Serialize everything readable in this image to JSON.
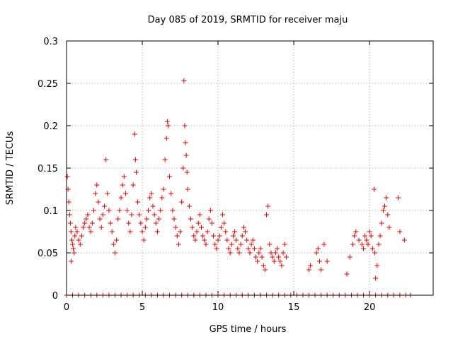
{
  "chart_data": {
    "type": "scatter",
    "title": "Day 085 of 2019, SRMTID for receiver maju",
    "xlabel": "GPS time / hours",
    "ylabel": "SRMTID / TECUs",
    "xlim": [
      0,
      24.2
    ],
    "ylim": [
      0,
      0.3
    ],
    "xticks": [
      0,
      5,
      10,
      15,
      20
    ],
    "xtick_labels": [
      "0",
      "5",
      "10",
      "15",
      "20"
    ],
    "yticks": [
      0,
      0.05,
      0.1,
      0.15,
      0.2,
      0.25,
      0.3
    ],
    "ytick_labels": [
      "0",
      "0.05",
      "0.1",
      "0.15",
      "0.2",
      "0.25",
      "0.3"
    ],
    "grid": true,
    "marker": "+",
    "color": "#e00000",
    "series": [
      {
        "name": "SRMTID",
        "points": [
          [
            0.05,
            0.14
          ],
          [
            0.1,
            0.125
          ],
          [
            0.15,
            0.11
          ],
          [
            0.2,
            0.095
          ],
          [
            0.25,
            0.085
          ],
          [
            0.3,
            0.075
          ],
          [
            0.35,
            0.065
          ],
          [
            0.4,
            0.06
          ],
          [
            0.45,
            0.055
          ],
          [
            0.5,
            0.05
          ],
          [
            0.3,
            0.04
          ],
          [
            0.55,
            0.07
          ],
          [
            0.6,
            0.08
          ],
          [
            0.7,
            0.075
          ],
          [
            0.8,
            0.065
          ],
          [
            0.9,
            0.06
          ],
          [
            1.0,
            0.07
          ],
          [
            1.1,
            0.08
          ],
          [
            1.2,
            0.085
          ],
          [
            1.3,
            0.09
          ],
          [
            1.4,
            0.095
          ],
          [
            1.5,
            0.08
          ],
          [
            1.6,
            0.075
          ],
          [
            1.7,
            0.085
          ],
          [
            1.8,
            0.1
          ],
          [
            1.9,
            0.12
          ],
          [
            2.0,
            0.13
          ],
          [
            2.1,
            0.11
          ],
          [
            2.2,
            0.09
          ],
          [
            2.3,
            0.08
          ],
          [
            2.4,
            0.095
          ],
          [
            2.5,
            0.105
          ],
          [
            2.6,
            0.16
          ],
          [
            2.7,
            0.12
          ],
          [
            2.8,
            0.1
          ],
          [
            2.9,
            0.085
          ],
          [
            3.0,
            0.075
          ],
          [
            3.1,
            0.06
          ],
          [
            3.2,
            0.05
          ],
          [
            3.3,
            0.065
          ],
          [
            3.4,
            0.09
          ],
          [
            3.5,
            0.1
          ],
          [
            3.6,
            0.115
          ],
          [
            3.7,
            0.13
          ],
          [
            3.8,
            0.14
          ],
          [
            3.9,
            0.12
          ],
          [
            4.0,
            0.1
          ],
          [
            4.1,
            0.085
          ],
          [
            4.2,
            0.075
          ],
          [
            4.3,
            0.095
          ],
          [
            4.4,
            0.13
          ],
          [
            4.5,
            0.19
          ],
          [
            4.55,
            0.16
          ],
          [
            4.6,
            0.145
          ],
          [
            4.7,
            0.11
          ],
          [
            4.8,
            0.095
          ],
          [
            4.9,
            0.085
          ],
          [
            5.0,
            0.075
          ],
          [
            5.1,
            0.065
          ],
          [
            5.2,
            0.08
          ],
          [
            5.3,
            0.09
          ],
          [
            5.4,
            0.1
          ],
          [
            5.5,
            0.115
          ],
          [
            5.6,
            0.12
          ],
          [
            5.7,
            0.105
          ],
          [
            5.8,
            0.095
          ],
          [
            5.9,
            0.085
          ],
          [
            6.0,
            0.075
          ],
          [
            6.1,
            0.09
          ],
          [
            6.2,
            0.1
          ],
          [
            6.3,
            0.115
          ],
          [
            6.4,
            0.125
          ],
          [
            6.5,
            0.16
          ],
          [
            6.6,
            0.185
          ],
          [
            6.65,
            0.205
          ],
          [
            6.7,
            0.2
          ],
          [
            6.8,
            0.14
          ],
          [
            6.9,
            0.12
          ],
          [
            7.0,
            0.1
          ],
          [
            7.1,
            0.09
          ],
          [
            7.2,
            0.08
          ],
          [
            7.3,
            0.07
          ],
          [
            7.4,
            0.06
          ],
          [
            7.5,
            0.075
          ],
          [
            7.6,
            0.11
          ],
          [
            7.7,
            0.15
          ],
          [
            7.75,
            0.253
          ],
          [
            7.8,
            0.2
          ],
          [
            7.85,
            0.18
          ],
          [
            7.9,
            0.165
          ],
          [
            7.95,
            0.145
          ],
          [
            8.0,
            0.125
          ],
          [
            8.1,
            0.105
          ],
          [
            8.2,
            0.09
          ],
          [
            8.3,
            0.08
          ],
          [
            8.4,
            0.07
          ],
          [
            8.5,
            0.065
          ],
          [
            8.6,
            0.075
          ],
          [
            8.7,
            0.085
          ],
          [
            8.8,
            0.095
          ],
          [
            8.9,
            0.08
          ],
          [
            9.0,
            0.07
          ],
          [
            9.1,
            0.065
          ],
          [
            9.2,
            0.06
          ],
          [
            9.3,
            0.075
          ],
          [
            9.4,
            0.09
          ],
          [
            9.5,
            0.1
          ],
          [
            9.6,
            0.085
          ],
          [
            9.7,
            0.07
          ],
          [
            9.8,
            0.06
          ],
          [
            9.9,
            0.055
          ],
          [
            10.0,
            0.065
          ],
          [
            10.1,
            0.07
          ],
          [
            10.2,
            0.08
          ],
          [
            10.3,
            0.095
          ],
          [
            10.4,
            0.085
          ],
          [
            10.5,
            0.075
          ],
          [
            10.6,
            0.065
          ],
          [
            10.7,
            0.055
          ],
          [
            10.8,
            0.05
          ],
          [
            10.9,
            0.06
          ],
          [
            11.0,
            0.07
          ],
          [
            11.1,
            0.075
          ],
          [
            11.2,
            0.065
          ],
          [
            11.3,
            0.055
          ],
          [
            11.4,
            0.05
          ],
          [
            11.5,
            0.06
          ],
          [
            11.6,
            0.07
          ],
          [
            11.7,
            0.08
          ],
          [
            11.8,
            0.075
          ],
          [
            11.9,
            0.065
          ],
          [
            12.0,
            0.055
          ],
          [
            12.1,
            0.05
          ],
          [
            12.2,
            0.06
          ],
          [
            12.3,
            0.065
          ],
          [
            12.4,
            0.055
          ],
          [
            12.5,
            0.045
          ],
          [
            12.6,
            0.04
          ],
          [
            12.7,
            0.05
          ],
          [
            12.8,
            0.055
          ],
          [
            12.9,
            0.045
          ],
          [
            13.0,
            0.035
          ],
          [
            13.1,
            0.03
          ],
          [
            13.2,
            0.095
          ],
          [
            13.3,
            0.105
          ],
          [
            13.4,
            0.06
          ],
          [
            13.5,
            0.05
          ],
          [
            13.6,
            0.045
          ],
          [
            13.7,
            0.04
          ],
          [
            13.8,
            0.05
          ],
          [
            13.9,
            0.055
          ],
          [
            14.0,
            0.045
          ],
          [
            14.1,
            0.04
          ],
          [
            14.2,
            0.035
          ],
          [
            14.3,
            0.05
          ],
          [
            14.4,
            0.06
          ],
          [
            14.5,
            0.045
          ],
          [
            16.0,
            0.03
          ],
          [
            16.1,
            0.035
          ],
          [
            16.5,
            0.05
          ],
          [
            16.6,
            0.055
          ],
          [
            16.7,
            0.04
          ],
          [
            16.8,
            0.03
          ],
          [
            17.0,
            0.06
          ],
          [
            17.2,
            0.04
          ],
          [
            18.5,
            0.025
          ],
          [
            18.7,
            0.045
          ],
          [
            18.9,
            0.06
          ],
          [
            19.0,
            0.07
          ],
          [
            19.1,
            0.075
          ],
          [
            19.3,
            0.065
          ],
          [
            19.5,
            0.06
          ],
          [
            19.6,
            0.055
          ],
          [
            19.7,
            0.07
          ],
          [
            19.8,
            0.065
          ],
          [
            19.9,
            0.06
          ],
          [
            20.0,
            0.075
          ],
          [
            20.1,
            0.07
          ],
          [
            20.2,
            0.055
          ],
          [
            20.3,
            0.125
          ],
          [
            20.35,
            0.05
          ],
          [
            20.4,
            0.02
          ],
          [
            20.5,
            0.035
          ],
          [
            20.6,
            0.06
          ],
          [
            20.7,
            0.07
          ],
          [
            20.8,
            0.085
          ],
          [
            20.9,
            0.1
          ],
          [
            21.0,
            0.105
          ],
          [
            21.1,
            0.115
          ],
          [
            21.2,
            0.095
          ],
          [
            21.3,
            0.08
          ],
          [
            21.9,
            0.115
          ],
          [
            22.0,
            0.075
          ],
          [
            22.3,
            0.065
          ],
          [
            0.0,
            0.0
          ],
          [
            0.4,
            0.0
          ],
          [
            0.8,
            0.0
          ],
          [
            1.2,
            0.0
          ],
          [
            1.6,
            0.0
          ],
          [
            2.0,
            0.0
          ],
          [
            2.4,
            0.0
          ],
          [
            2.8,
            0.0
          ],
          [
            3.2,
            0.0
          ],
          [
            3.6,
            0.0
          ],
          [
            4.0,
            0.0
          ],
          [
            4.4,
            0.0
          ],
          [
            4.8,
            0.0
          ],
          [
            5.2,
            0.0
          ],
          [
            5.6,
            0.0
          ],
          [
            6.0,
            0.0
          ],
          [
            6.4,
            0.0
          ],
          [
            6.8,
            0.0
          ],
          [
            7.2,
            0.0
          ],
          [
            7.6,
            0.0
          ],
          [
            8.0,
            0.0
          ],
          [
            8.4,
            0.0
          ],
          [
            8.8,
            0.0
          ],
          [
            9.2,
            0.0
          ],
          [
            9.6,
            0.0
          ],
          [
            10.0,
            0.0
          ],
          [
            10.4,
            0.0
          ],
          [
            10.8,
            0.0
          ],
          [
            11.2,
            0.0
          ],
          [
            11.6,
            0.0
          ],
          [
            12.0,
            0.0
          ],
          [
            12.4,
            0.0
          ],
          [
            12.8,
            0.0
          ],
          [
            13.2,
            0.0
          ],
          [
            13.6,
            0.0
          ],
          [
            14.0,
            0.0
          ],
          [
            14.4,
            0.0
          ],
          [
            14.8,
            0.0
          ],
          [
            15.2,
            0.0
          ],
          [
            15.6,
            0.0
          ],
          [
            16.0,
            0.0
          ],
          [
            16.4,
            0.0
          ],
          [
            16.8,
            0.0
          ],
          [
            17.2,
            0.0
          ],
          [
            17.6,
            0.0
          ],
          [
            18.0,
            0.0
          ],
          [
            18.4,
            0.0
          ],
          [
            18.8,
            0.0
          ],
          [
            19.2,
            0.0
          ],
          [
            19.6,
            0.0
          ],
          [
            20.0,
            0.0
          ],
          [
            20.4,
            0.0
          ],
          [
            20.8,
            0.0
          ],
          [
            21.2,
            0.0
          ],
          [
            21.6,
            0.0
          ],
          [
            22.0,
            0.0
          ],
          [
            22.4,
            0.0
          ],
          [
            22.7,
            0.0
          ]
        ]
      }
    ]
  }
}
